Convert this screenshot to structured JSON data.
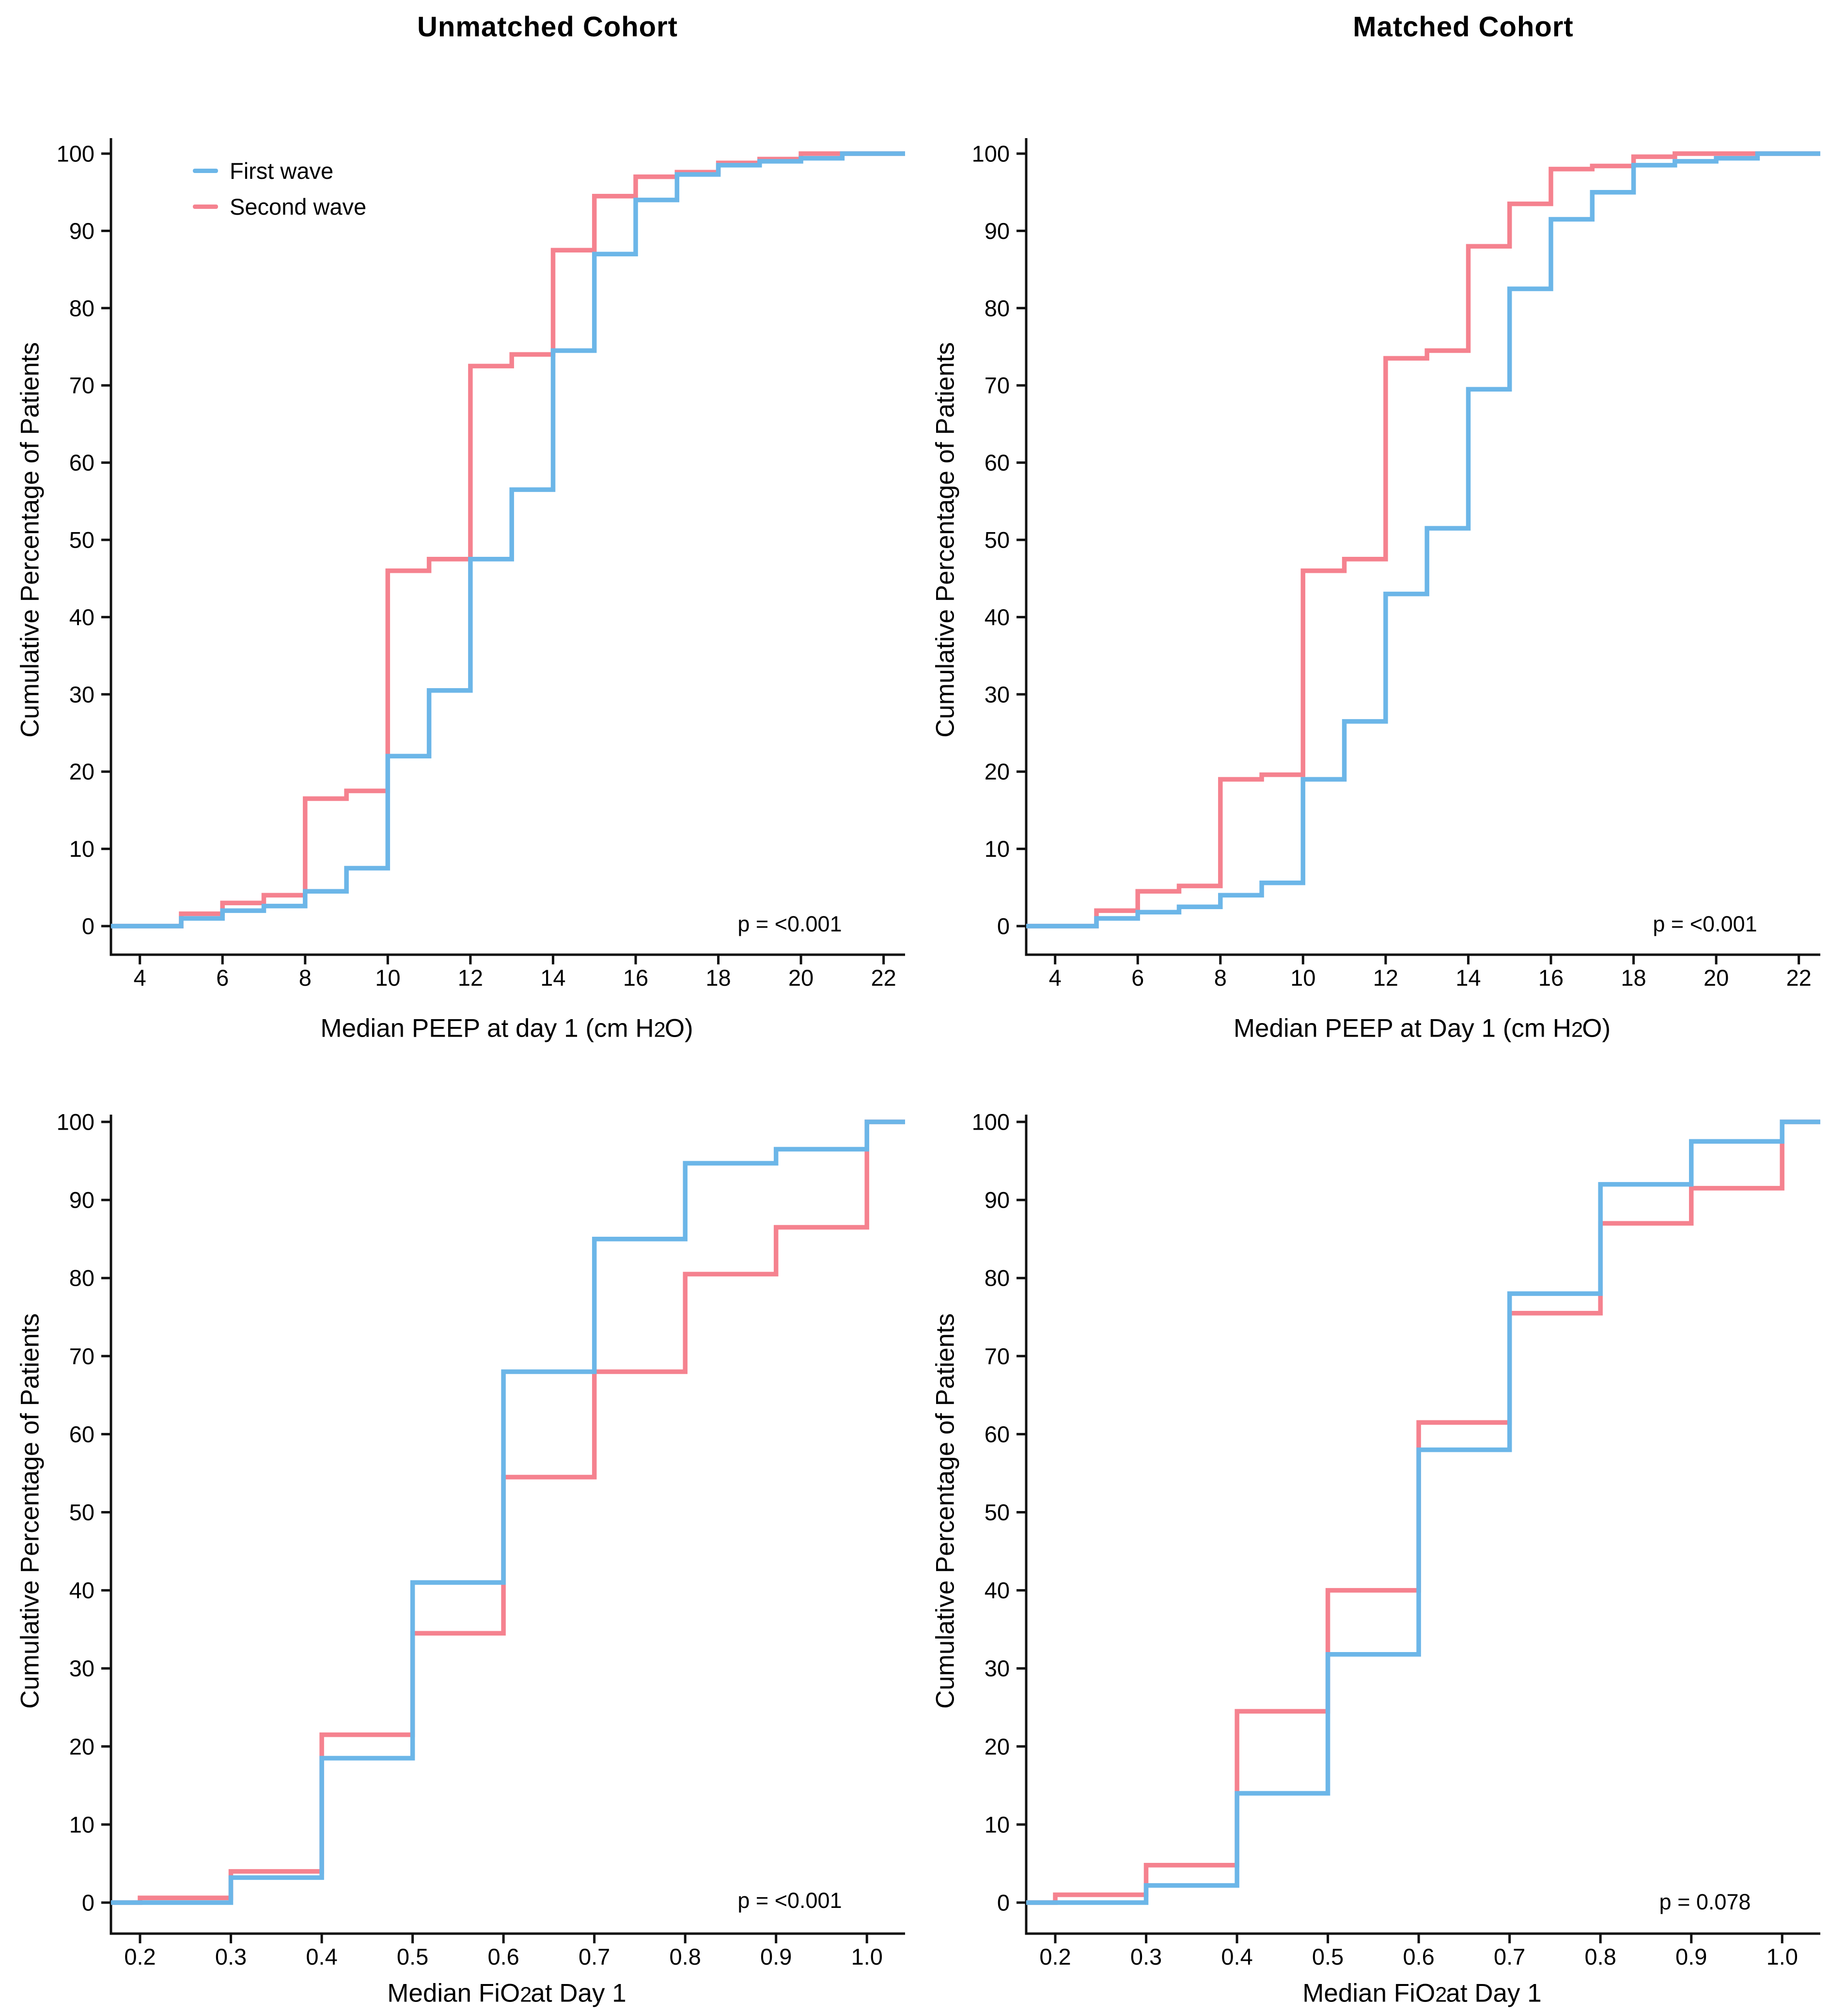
{
  "page": {
    "background": "#ffffff"
  },
  "colors": {
    "first_wave": "#6cb6e8",
    "second_wave": "#f5828f",
    "axis": "#111111",
    "text": "#000000"
  },
  "legend": {
    "items": [
      {
        "label": "First wave",
        "color_key": "first_wave"
      },
      {
        "label": "Second wave",
        "color_key": "second_wave"
      }
    ]
  },
  "chart_data": [
    {
      "type": "line",
      "variant": "step-ecdf",
      "title": "Unmatched Cohort",
      "ylabel": "Cumulative Percentage of Patients",
      "xlabel_pre": "Median PEEP at day 1 (cm H",
      "xlabel_sub": "2",
      "xlabel_post": "O)",
      "p_value": "p = <0.001",
      "xlim": [
        3.3,
        22.52
      ],
      "ylim": [
        0,
        100
      ],
      "xticks": [
        4,
        6,
        8,
        10,
        12,
        14,
        16,
        18,
        20,
        22
      ],
      "xtick_labels": [
        "4",
        "6",
        "8",
        "10",
        "12",
        "14",
        "16",
        "18",
        "20",
        "22"
      ],
      "yticks": [
        0,
        10,
        20,
        30,
        40,
        50,
        60,
        70,
        80,
        90,
        100
      ],
      "legend_position": "top-left-inside",
      "grid": false,
      "series": [
        {
          "name": "Second wave",
          "color_key": "second_wave",
          "points": [
            [
              5,
              1.6
            ],
            [
              6,
              3
            ],
            [
              7,
              4
            ],
            [
              8,
              16.5
            ],
            [
              9,
              17.5
            ],
            [
              10,
              46
            ],
            [
              11,
              47.5
            ],
            [
              12,
              72.5
            ],
            [
              13,
              74
            ],
            [
              14,
              87.5
            ],
            [
              15,
              94.5
            ],
            [
              16,
              97
            ],
            [
              17,
              97.6
            ],
            [
              18,
              98.8
            ],
            [
              19,
              99.3
            ],
            [
              20,
              100
            ]
          ]
        },
        {
          "name": "First wave",
          "color_key": "first_wave",
          "points": [
            [
              5,
              1
            ],
            [
              6,
              2
            ],
            [
              7,
              2.6
            ],
            [
              8,
              4.5
            ],
            [
              9,
              7.5
            ],
            [
              10,
              22
            ],
            [
              11,
              30.5
            ],
            [
              12,
              47.5
            ],
            [
              13,
              56.5
            ],
            [
              14,
              74.5
            ],
            [
              15,
              87
            ],
            [
              16,
              94
            ],
            [
              17,
              97.3
            ],
            [
              18,
              98.5
            ],
            [
              19,
              99
            ],
            [
              20,
              99.4
            ],
            [
              21,
              100
            ]
          ]
        }
      ]
    },
    {
      "type": "line",
      "variant": "step-ecdf",
      "title": "Matched Cohort",
      "ylabel": "Cumulative Percentage of Patients",
      "xlabel_pre": "Median PEEP at Day 1 (cm H",
      "xlabel_sub": "2",
      "xlabel_post": "O)",
      "p_value": "p = <0.001",
      "xlim": [
        3.3,
        22.52
      ],
      "ylim": [
        0,
        100
      ],
      "xticks": [
        4,
        6,
        8,
        10,
        12,
        14,
        16,
        18,
        20,
        22
      ],
      "xtick_labels": [
        "4",
        "6",
        "8",
        "10",
        "12",
        "14",
        "16",
        "18",
        "20",
        "22"
      ],
      "yticks": [
        0,
        10,
        20,
        30,
        40,
        50,
        60,
        70,
        80,
        90,
        100
      ],
      "grid": false,
      "series": [
        {
          "name": "Second wave",
          "color_key": "second_wave",
          "points": [
            [
              5,
              2
            ],
            [
              6,
              4.5
            ],
            [
              7,
              5.2
            ],
            [
              8,
              19
            ],
            [
              9,
              19.6
            ],
            [
              10,
              46
            ],
            [
              11,
              47.5
            ],
            [
              12,
              73.5
            ],
            [
              13,
              74.5
            ],
            [
              14,
              88
            ],
            [
              15,
              93.5
            ],
            [
              16,
              98
            ],
            [
              17,
              98.4
            ],
            [
              18,
              99.6
            ],
            [
              19,
              100
            ]
          ]
        },
        {
          "name": "First wave",
          "color_key": "first_wave",
          "points": [
            [
              5,
              1
            ],
            [
              6,
              1.8
            ],
            [
              7,
              2.5
            ],
            [
              8,
              4
            ],
            [
              9,
              5.6
            ],
            [
              10,
              19
            ],
            [
              11,
              26.5
            ],
            [
              12,
              43
            ],
            [
              13,
              51.5
            ],
            [
              14,
              69.5
            ],
            [
              15,
              82.5
            ],
            [
              16,
              91.5
            ],
            [
              17,
              95
            ],
            [
              18,
              98.5
            ],
            [
              19,
              99
            ],
            [
              20,
              99.4
            ],
            [
              21,
              100
            ]
          ]
        }
      ]
    },
    {
      "type": "line",
      "variant": "step-ecdf",
      "title": "",
      "ylabel": "Cumulative Percentage of Patients",
      "xlabel_pre": "Median FiO",
      "xlabel_sub": "2",
      "xlabel_post": "at Day 1",
      "p_value": "p = <0.001",
      "xlim": [
        0.168,
        1.042
      ],
      "ylim": [
        0,
        100
      ],
      "xticks": [
        0.2,
        0.3,
        0.4,
        0.5,
        0.6,
        0.7,
        0.8,
        0.9,
        1.0
      ],
      "xtick_labels": [
        "0.2",
        "0.3",
        "0.4",
        "0.5",
        "0.6",
        "0.7",
        "0.8",
        "0.9",
        "1.0"
      ],
      "yticks": [
        0,
        10,
        20,
        30,
        40,
        50,
        60,
        70,
        80,
        90,
        100
      ],
      "grid": false,
      "series": [
        {
          "name": "Second wave",
          "color_key": "second_wave",
          "points": [
            [
              0.2,
              0.6
            ],
            [
              0.3,
              4
            ],
            [
              0.4,
              21.5
            ],
            [
              0.5,
              34.5
            ],
            [
              0.6,
              54.5
            ],
            [
              0.7,
              68
            ],
            [
              0.8,
              80.5
            ],
            [
              0.9,
              86.5
            ],
            [
              1.0,
              100
            ]
          ]
        },
        {
          "name": "First wave",
          "color_key": "first_wave",
          "points": [
            [
              0.3,
              3.2
            ],
            [
              0.4,
              18.5
            ],
            [
              0.5,
              41
            ],
            [
              0.6,
              68
            ],
            [
              0.7,
              85
            ],
            [
              0.8,
              94.7
            ],
            [
              0.9,
              96.5
            ],
            [
              1.0,
              100
            ]
          ]
        }
      ]
    },
    {
      "type": "line",
      "variant": "step-ecdf",
      "title": "",
      "ylabel": "Cumulative Percentage of Patients",
      "xlabel_pre": "Median FiO",
      "xlabel_sub": "2",
      "xlabel_post": "at Day 1",
      "p_value": "p = 0.078",
      "xlim": [
        0.168,
        1.042
      ],
      "ylim": [
        0,
        100
      ],
      "xticks": [
        0.2,
        0.3,
        0.4,
        0.5,
        0.6,
        0.7,
        0.8,
        0.9,
        1.0
      ],
      "xtick_labels": [
        "0.2",
        "0.3",
        "0.4",
        "0.5",
        "0.6",
        "0.7",
        "0.8",
        "0.9",
        "1.0"
      ],
      "yticks": [
        0,
        10,
        20,
        30,
        40,
        50,
        60,
        70,
        80,
        90,
        100
      ],
      "grid": false,
      "series": [
        {
          "name": "Second wave",
          "color_key": "second_wave",
          "points": [
            [
              0.2,
              1
            ],
            [
              0.3,
              4.8
            ],
            [
              0.4,
              24.5
            ],
            [
              0.5,
              40
            ],
            [
              0.6,
              61.5
            ],
            [
              0.7,
              75.5
            ],
            [
              0.8,
              87
            ],
            [
              0.9,
              91.5
            ],
            [
              1.0,
              100
            ]
          ]
        },
        {
          "name": "First wave",
          "color_key": "first_wave",
          "points": [
            [
              0.3,
              2.2
            ],
            [
              0.4,
              14
            ],
            [
              0.5,
              31.8
            ],
            [
              0.6,
              58
            ],
            [
              0.7,
              78
            ],
            [
              0.8,
              92
            ],
            [
              0.9,
              97.5
            ],
            [
              1.0,
              100
            ]
          ]
        }
      ]
    }
  ]
}
